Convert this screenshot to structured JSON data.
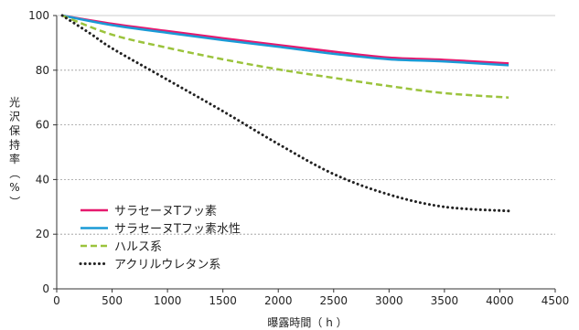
{
  "chart_data": {
    "type": "line",
    "xlabel": "曝露時間（ h ）",
    "ylabel_chars": [
      "光",
      "沢",
      "保",
      "持",
      "率",
      "（",
      "%",
      "）"
    ],
    "xlim": [
      0,
      4500
    ],
    "ylim": [
      0,
      100
    ],
    "x_ticks": [
      0,
      500,
      1000,
      1500,
      2000,
      2500,
      3000,
      3500,
      4000,
      4500
    ],
    "y_ticks": [
      0,
      20,
      40,
      60,
      80,
      100
    ],
    "y_gridlines": [
      20,
      40,
      60,
      80
    ],
    "legend_position": "bottom-left",
    "series": [
      {
        "name": "サラセーヌTフッ素",
        "color": "#e6196e",
        "style": "solid",
        "x": [
          50,
          500,
          1000,
          1500,
          2000,
          2500,
          3000,
          3500,
          4080
        ],
        "y": [
          100,
          97,
          94.3,
          91.7,
          89.2,
          86.8,
          84.6,
          83.8,
          82.5
        ]
      },
      {
        "name": "サラセーヌTフッ素水性",
        "color": "#1a9ad6",
        "style": "solid",
        "x": [
          50,
          500,
          1000,
          1500,
          2000,
          2500,
          3000,
          3500,
          4080
        ],
        "y": [
          100,
          96.5,
          93.7,
          91,
          88.6,
          86,
          84,
          83.2,
          81.8
        ]
      },
      {
        "name": "ハルス系",
        "color": "#9bc33c",
        "style": "dashed",
        "x": [
          50,
          500,
          1000,
          1500,
          2000,
          2500,
          3000,
          3500,
          4080
        ],
        "y": [
          100,
          93,
          88.2,
          84,
          80.3,
          77.2,
          74.2,
          71.6,
          70
        ]
      },
      {
        "name": "アクリルウレタン系",
        "color": "#222222",
        "style": "dotted",
        "x": [
          50,
          300,
          500,
          1000,
          1500,
          2000,
          2500,
          3000,
          3500,
          4080
        ],
        "y": [
          100,
          93.5,
          88,
          76.5,
          65,
          53,
          42,
          34.5,
          30,
          28.5
        ]
      }
    ]
  }
}
